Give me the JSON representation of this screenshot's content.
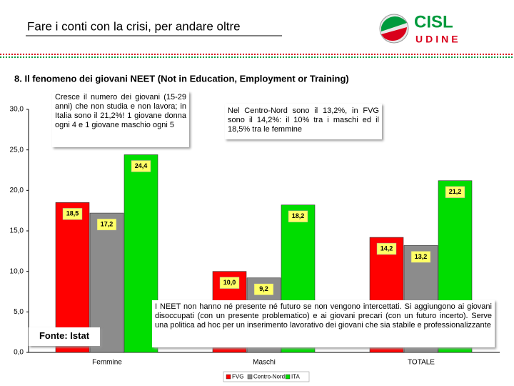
{
  "slide": {
    "title": "Fare i conti con la crisi, per andare oltre",
    "subtitle": "8. Il fenomeno dei giovani NEET (Not in Education, Employment or Training)",
    "logo": {
      "name": "CISL",
      "city": "UDINE"
    }
  },
  "chart_data": {
    "type": "bar",
    "categories": [
      "Femmine",
      "Maschi",
      "TOTALE"
    ],
    "series": [
      {
        "name": "FVG",
        "color": "#ff0000",
        "values": [
          18.5,
          10.0,
          14.2
        ],
        "value_labels": [
          "18,5",
          "10,0",
          "14,2"
        ]
      },
      {
        "name": "Centro-Nord",
        "color": "#8c8c8c",
        "values": [
          17.2,
          9.2,
          13.2
        ],
        "value_labels": [
          "17,2",
          "9,2",
          "13,2"
        ]
      },
      {
        "name": "ITA",
        "color": "#00dd00",
        "values": [
          24.4,
          18.2,
          21.2
        ],
        "value_labels": [
          "24,4",
          "18,2",
          "21,2"
        ]
      }
    ],
    "ylim": [
      0,
      30
    ],
    "yticks": [
      {
        "value": 0,
        "label": "0,0"
      },
      {
        "value": 5,
        "label": "5,0"
      },
      {
        "value": 10,
        "label": "10,0"
      },
      {
        "value": 15,
        "label": "15,0"
      },
      {
        "value": 20,
        "label": "20,0"
      },
      {
        "value": 25,
        "label": "25,0"
      },
      {
        "value": 30,
        "label": "30,0"
      }
    ],
    "legend": "bottom",
    "annotations": [
      "Cresce il numero dei giovani (15-29 anni) che non studia e non lavora; in Italia sono il 21,2%! 1 giovane donna ogni 4 e 1 giovane maschio ogni 5",
      "Nel Centro-Nord sono il 13,2%, in FVG sono il 14,2%: il 10% tra i maschi ed il 18,5% tra le femmine",
      "I NEET non hanno né presente né futuro se non vengono intercettati. Si aggiungono ai giovani disoccupati (con un presente problematico) e ai giovani precari (con un futuro incerto). Serve una politica ad hoc per un inserimento lavorativo dei giovani che sia stabile e professionalizzante",
      "Fonte: Istat"
    ]
  }
}
